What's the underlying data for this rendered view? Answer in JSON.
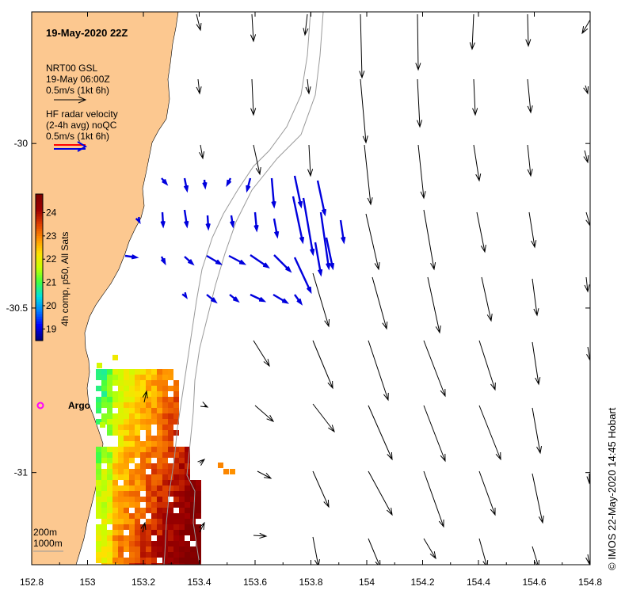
{
  "title": "19-May-2020 22Z",
  "legend": {
    "model_line1": "NRT00 GSL",
    "model_line2": "19-May 06:00Z",
    "model_scale": "0.5m/s (1kt 6h)",
    "radar_line1": "HF radar velocity",
    "radar_line2": "(2-4h avg) noQC",
    "radar_scale": "0.5m/s (1kt 6h)"
  },
  "colorbar": {
    "label": "4h comp, p50, All Sats",
    "ticks": [
      "24",
      "23",
      "22",
      "21",
      "20",
      "19"
    ],
    "range": [
      18.5,
      24.8
    ],
    "colors": [
      "#00007f",
      "#0000ff",
      "#0080ff",
      "#00e0e0",
      "#40ff40",
      "#c8ff00",
      "#ffe000",
      "#ff9000",
      "#e04000",
      "#a00000",
      "#800000"
    ]
  },
  "axes": {
    "x_ticks": [
      "152.8",
      "153",
      "153.2",
      "153.4",
      "153.6",
      "153.8",
      "154",
      "154.2",
      "154.4",
      "154.6",
      "154.8"
    ],
    "y_ticks": [
      "-30",
      "-30.5",
      "-31"
    ],
    "x_range": [
      152.8,
      154.8
    ],
    "y_range": [
      -31.28,
      -29.6
    ]
  },
  "depth_labels": {
    "line1": "200m",
    "line2": "1000m"
  },
  "argo_label": "Argo",
  "credit": "© IMOS 22-May-2020 14:45 Hobart",
  "colors": {
    "land": "#fcc890",
    "model_arrow": "#000000",
    "radar_arrow": "#0000dd",
    "radar_scale_red": "#ff0000",
    "argo": "#ff00ff",
    "contour": "#999999"
  }
}
